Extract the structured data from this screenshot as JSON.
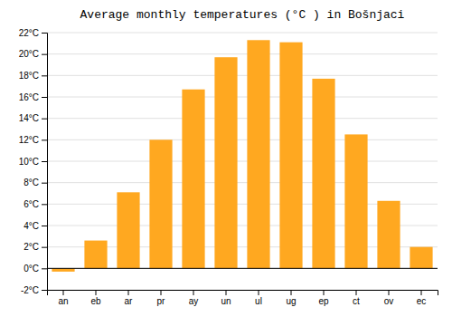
{
  "chart_data": {
    "type": "bar",
    "title": "Average monthly temperatures (°C ) in Bošnjaci",
    "categories": [
      "an",
      "eb",
      "ar",
      "pr",
      "ay",
      "un",
      "ul",
      "ug",
      "ep",
      "ct",
      "ov",
      "ec"
    ],
    "values": [
      -0.3,
      2.6,
      7.1,
      12.0,
      16.7,
      19.7,
      21.3,
      21.1,
      17.7,
      12.5,
      6.3,
      2.0
    ],
    "color": "#FFA820",
    "ylim": [
      -2,
      22
    ],
    "yticks": [
      {
        "value": -2,
        "label": "-2°C"
      },
      {
        "value": 0,
        "label": "0°C"
      },
      {
        "value": 2,
        "label": "2°C"
      },
      {
        "value": 4,
        "label": "4°C"
      },
      {
        "value": 6,
        "label": "6°C"
      },
      {
        "value": 8,
        "label": "8°C"
      },
      {
        "value": 10,
        "label": "10°C"
      },
      {
        "value": 12,
        "label": "12°C"
      },
      {
        "value": 14,
        "label": "14°C"
      },
      {
        "value": 16,
        "label": "16°C"
      },
      {
        "value": 18,
        "label": "18°C"
      },
      {
        "value": 20,
        "label": "20°C"
      },
      {
        "value": 22,
        "label": "22°C"
      }
    ],
    "grid": true
  }
}
